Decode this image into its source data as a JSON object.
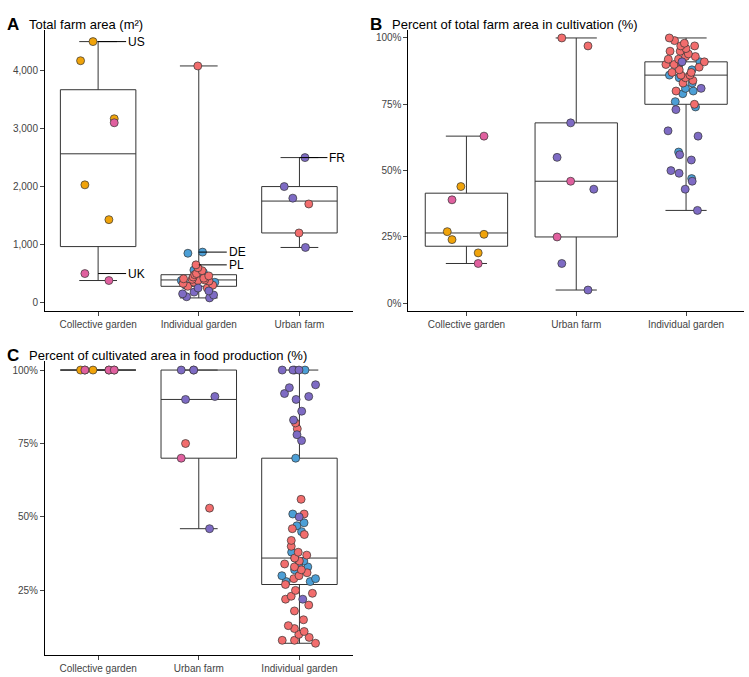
{
  "chart_data": [
    {
      "type": "box",
      "panel": "A",
      "title": "Total farm area (m²)",
      "categories": [
        "Collective garden",
        "Individual garden",
        "Urban farm"
      ],
      "ylim": [
        -150,
        4700
      ],
      "yticks": [
        0,
        {
          "value": 1000,
          "label": "1,000"
        },
        {
          "value": 2000,
          "label": "2,000"
        },
        {
          "value": 3000,
          "label": "3,000"
        },
        {
          "value": 4000,
          "label": "4,000"
        }
      ],
      "grid": false,
      "series": [
        {
          "name": "US",
          "color": "#F0A30A",
          "values": [
            [
              4500,
              4170,
              3170,
              2030,
              1430
            ],
            [],
            []
          ]
        },
        {
          "name": "UK",
          "color": "#E0609F",
          "values": [
            [
              3100,
              500,
              380
            ],
            [],
            []
          ]
        },
        {
          "name": "DE",
          "color": "#4C9FD6",
          "values": [
            [],
            [
              870,
              850,
              560,
              520,
              480,
              450,
              420,
              380,
              350,
              300,
              250
            ],
            []
          ]
        },
        {
          "name": "PL",
          "color": "#F26D6D",
          "values": [
            [],
            [
              4080,
              650,
              600,
              550,
              500,
              480,
              460,
              440,
              420,
              410,
              400,
              390,
              380,
              370,
              350,
              330,
              300,
              280,
              250
            ],
            [
              1700,
              1200
            ]
          ]
        },
        {
          "name": "FR",
          "color": "#7E6BC4",
          "values": [
            [],
            [
              250,
              200,
              180,
              150,
              130,
              100,
              80
            ],
            [
              2500,
              2000,
              1800,
              950
            ]
          ]
        }
      ],
      "annotations": [
        {
          "text": "US",
          "category": "Collective garden",
          "value": 4500
        },
        {
          "text": "UK",
          "category": "Collective garden",
          "value": 500
        },
        {
          "text": "DE",
          "category": "Individual garden",
          "value": 870
        },
        {
          "text": "PL",
          "category": "Individual garden",
          "value": 650
        },
        {
          "text": "FR",
          "category": "Urban farm",
          "value": 2500
        }
      ]
    },
    {
      "type": "box",
      "panel": "B",
      "title": "Percent of total farm area in cultivation (%)",
      "categories": [
        "Collective garden",
        "Individual garden",
        "Urban farm"
      ],
      "ylim": [
        -3,
        103
      ],
      "yticks": [
        {
          "value": 0,
          "label": "0%"
        },
        {
          "value": 25,
          "label": "25%"
        },
        {
          "value": 50,
          "label": "50%"
        },
        {
          "value": 75,
          "label": "75%"
        },
        {
          "value": 100,
          "label": "100%"
        }
      ],
      "grid": false,
      "series": [
        {
          "name": "US",
          "color": "#F0A30A",
          "values": [
            [
              44,
              27,
              26,
              24,
              19
            ],
            [],
            []
          ]
        },
        {
          "name": "UK",
          "color": "#E0609F",
          "values": [
            [
              63,
              39,
              15
            ],
            [],
            [
              46,
              25
            ]
          ]
        },
        {
          "name": "DE",
          "color": "#4C9FD6",
          "values": [
            [],
            [
              91,
              90,
              88,
              86,
              85,
              83,
              81,
              80,
              79,
              76,
              74,
              57,
              47
            ],
            []
          ]
        },
        {
          "name": "PL",
          "color": "#F26D6D",
          "values": [
            [],
            [
              100,
              99,
              98,
              97,
              97,
              96,
              95,
              95,
              94,
              93,
              93,
              92,
              92,
              91,
              91,
              90,
              90,
              89,
              88,
              87,
              87,
              86,
              86,
              85,
              84,
              83,
              80,
              75
            ],
            [
              100,
              97
            ]
          ]
        },
        {
          "name": "FR",
          "color": "#7E6BC4",
          "values": [
            [],
            [
              91,
              81,
              73,
              65,
              63,
              56,
              54,
              50,
              49,
              46,
              43,
              35
            ],
            [
              68,
              55,
              43,
              15,
              5
            ]
          ]
        }
      ]
    },
    {
      "type": "box",
      "panel": "C",
      "title": "Percent of cultivated area in food production (%)",
      "categories": [
        "Collective garden",
        "Individual garden",
        "Urban farm"
      ],
      "ylim": [
        3,
        103
      ],
      "yticks": [
        {
          "value": 25,
          "label": "25%"
        },
        {
          "value": 50,
          "label": "50%"
        },
        {
          "value": 75,
          "label": "75%"
        },
        {
          "value": 100,
          "label": "100%"
        }
      ],
      "grid": false,
      "series": [
        {
          "name": "US",
          "color": "#F0A30A",
          "values": [
            [
              100,
              100,
              100,
              100,
              100
            ],
            [],
            []
          ]
        },
        {
          "name": "UK",
          "color": "#E0609F",
          "values": [
            [
              100,
              100,
              100
            ],
            [],
            [
              100,
              70
            ]
          ]
        },
        {
          "name": "DE",
          "color": "#4C9FD6",
          "values": [
            [],
            [
              100,
              70,
              51,
              48,
              47,
              45,
              38,
              36,
              35,
              34,
              33,
              32,
              30,
              29,
              28,
              28
            ],
            []
          ]
        },
        {
          "name": "PL",
          "color": "#F26D6D",
          "values": [
            [],
            [
              82,
              80,
              56,
              51,
              46,
              44,
              42,
              40,
              38,
              37,
              36,
              35,
              34,
              33,
              32,
              31,
              30,
              29,
              27,
              25,
              24,
              23,
              22,
              20,
              18,
              15,
              13,
              12,
              11,
              10,
              9,
              8,
              8,
              7
            ],
            [
              75,
              53
            ]
          ]
        },
        {
          "name": "FR",
          "color": "#7E6BC4",
          "values": [
            [],
            [
              100,
              100,
              100,
              100,
              95,
              94,
              92,
              91,
              90,
              86,
              83,
              78,
              76,
              50,
              22
            ],
            [
              100,
              100,
              91,
              90,
              46
            ]
          ]
        }
      ]
    }
  ]
}
